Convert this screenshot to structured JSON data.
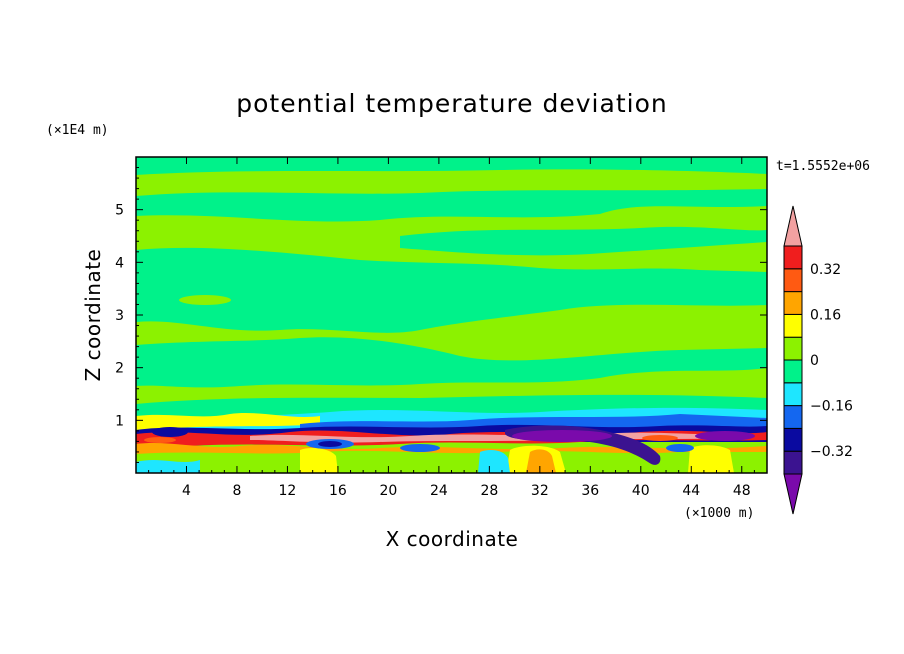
{
  "chart_data": {
    "type": "heatmap",
    "title": "potential temperature deviation",
    "xlabel": "X coordinate",
    "ylabel": "Z coordinate",
    "x_unit": "(×1000 m)",
    "y_unit": "(×1E4 m)",
    "time_label": "t=1.5552e+06",
    "xlim": [
      0,
      50
    ],
    "ylim": [
      0,
      6
    ],
    "x_ticks": [
      4,
      8,
      12,
      16,
      20,
      24,
      28,
      32,
      36,
      40,
      44,
      48
    ],
    "y_ticks": [
      1,
      2,
      3,
      4,
      5
    ],
    "x_tick_labels": [
      "4",
      "8",
      "12",
      "16",
      "20",
      "24",
      "28",
      "32",
      "36",
      "40",
      "44",
      "48"
    ],
    "y_tick_labels": [
      "1",
      "2",
      "3",
      "4",
      "5"
    ],
    "colorbar": {
      "levels": [
        -0.4,
        -0.32,
        -0.24,
        -0.16,
        -0.08,
        0,
        0.08,
        0.16,
        0.24,
        0.32,
        0.4
      ],
      "labels": [
        {
          "value": 0.32,
          "text": "0.32"
        },
        {
          "value": 0.16,
          "text": "0.16"
        },
        {
          "value": 0,
          "text": "0"
        },
        {
          "value": -0.16,
          "text": "−0.16"
        },
        {
          "value": -0.32,
          "text": "−0.32"
        }
      ],
      "colors": [
        "#7a0aab",
        "#3b1390",
        "#0a0aa0",
        "#1467f0",
        "#1ee6ff",
        "#00f28a",
        "#8cf200",
        "#ffff00",
        "#ffa500",
        "#ff5a12",
        "#f01e1e",
        "#f2a1a1"
      ]
    },
    "field_description_values": {
      "upper_bands_range": [
        -0.08,
        0.08
      ],
      "boundary_layer_height": 0.8
    }
  }
}
